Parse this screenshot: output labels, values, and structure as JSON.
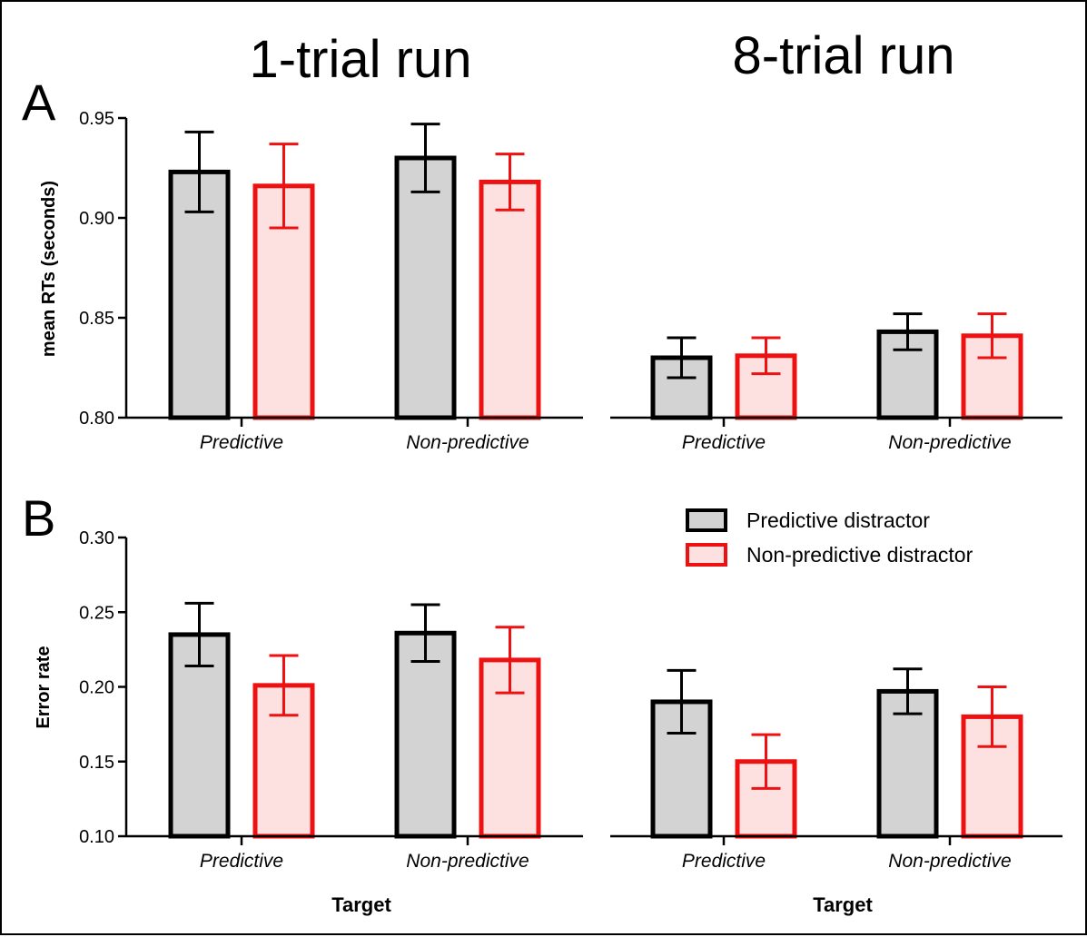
{
  "column_titles": [
    "1-trial run",
    "8-trial run"
  ],
  "panel_labels": [
    "A",
    "B"
  ],
  "legend": {
    "position": "top-right of panel B",
    "items": [
      {
        "label": "Predictive distractor",
        "stroke": "#000000",
        "fill": "#d3d3d3"
      },
      {
        "label": "Non-predictive distractor",
        "stroke": "#ee1111",
        "fill": "#fde1e1"
      }
    ]
  },
  "colors": {
    "predictive_stroke": "#000000",
    "predictive_fill": "#d3d3d3",
    "nonpredictive_stroke": "#ee1111",
    "nonpredictive_fill": "#fde1e1"
  },
  "chart_data": [
    {
      "type": "bar",
      "panel": "A",
      "column": "1-trial run",
      "ylabel": "mean RTs (seconds)",
      "xlabel": "",
      "ylim": [
        0.8,
        0.95
      ],
      "yticks": [
        "0.80",
        "0.85",
        "0.90",
        "0.95"
      ],
      "categories": [
        "Predictive",
        "Non-predictive"
      ],
      "series": [
        {
          "name": "Predictive distractor",
          "values": [
            0.923,
            0.93
          ],
          "errors": [
            0.02,
            0.017
          ]
        },
        {
          "name": "Non-predictive distractor",
          "values": [
            0.916,
            0.918
          ],
          "errors": [
            0.021,
            0.014
          ]
        }
      ]
    },
    {
      "type": "bar",
      "panel": "A",
      "column": "8-trial run",
      "ylabel": "",
      "xlabel": "",
      "ylim": [
        0.8,
        0.95
      ],
      "yticks": [],
      "categories": [
        "Predictive",
        "Non-predictive"
      ],
      "series": [
        {
          "name": "Predictive distractor",
          "values": [
            0.83,
            0.843
          ],
          "errors": [
            0.01,
            0.009
          ]
        },
        {
          "name": "Non-predictive distractor",
          "values": [
            0.831,
            0.841
          ],
          "errors": [
            0.009,
            0.011
          ]
        }
      ]
    },
    {
      "type": "bar",
      "panel": "B",
      "column": "1-trial run",
      "ylabel": "Error rate",
      "xlabel": "Target",
      "ylim": [
        0.1,
        0.3
      ],
      "yticks": [
        "0.10",
        "0.15",
        "0.20",
        "0.25",
        "0.30"
      ],
      "categories": [
        "Predictive",
        "Non-predictive"
      ],
      "series": [
        {
          "name": "Predictive distractor",
          "values": [
            0.235,
            0.236
          ],
          "errors": [
            0.021,
            0.019
          ]
        },
        {
          "name": "Non-predictive distractor",
          "values": [
            0.201,
            0.218
          ],
          "errors": [
            0.02,
            0.022
          ]
        }
      ]
    },
    {
      "type": "bar",
      "panel": "B",
      "column": "8-trial run",
      "ylabel": "",
      "xlabel": "Target",
      "ylim": [
        0.1,
        0.3
      ],
      "yticks": [],
      "categories": [
        "Predictive",
        "Non-predictive"
      ],
      "series": [
        {
          "name": "Predictive distractor",
          "values": [
            0.19,
            0.197
          ],
          "errors": [
            0.021,
            0.015
          ]
        },
        {
          "name": "Non-predictive distractor",
          "values": [
            0.15,
            0.18
          ],
          "errors": [
            0.018,
            0.02
          ]
        }
      ]
    }
  ]
}
